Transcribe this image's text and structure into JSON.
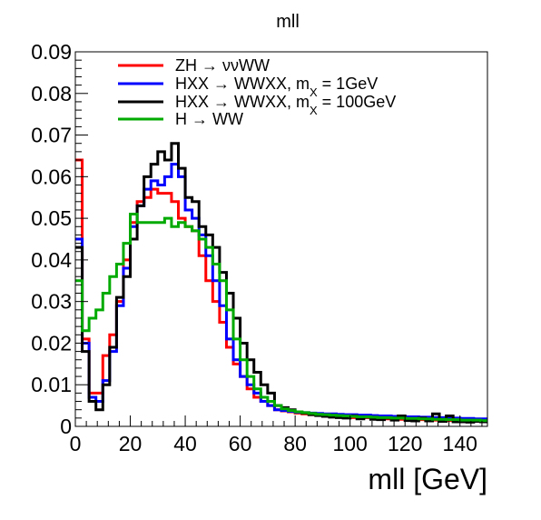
{
  "chart_data": {
    "type": "line",
    "drawstyle": "steps",
    "title": "mll",
    "xlabel": "mll [GeV]",
    "ylabel": "",
    "xlim": [
      0,
      150
    ],
    "ylim": [
      0,
      0.09
    ],
    "xticks": [
      "0",
      "20",
      "40",
      "60",
      "80",
      "100",
      "120",
      "140"
    ],
    "yticks": [
      "0",
      "0.01",
      "0.02",
      "0.03",
      "0.04",
      "0.05",
      "0.06",
      "0.07",
      "0.08",
      "0.09"
    ],
    "bin_width": 2.5,
    "grid": false,
    "legend_position": "top",
    "series": [
      {
        "legend_parts": [
          "ZH → ",
          "νν",
          "WW"
        ],
        "color": "#ff0000",
        "values": [
          0.064,
          0.021,
          0.008,
          0.008,
          0.017,
          0.022,
          0.03,
          0.04,
          0.049,
          0.054,
          0.055,
          0.057,
          0.056,
          0.056,
          0.054,
          0.05,
          0.048,
          0.047,
          0.041,
          0.035,
          0.03,
          0.025,
          0.019,
          0.015,
          0.012,
          0.009,
          0.007,
          0.006,
          0.005,
          0.004,
          0.0037,
          0.0035,
          0.0032,
          0.003,
          0.0028,
          0.0027,
          0.0025,
          0.0024,
          0.0023,
          0.0022,
          0.0021,
          0.002,
          0.0021,
          0.0019,
          0.0019,
          0.0018,
          0.0018,
          0.0017,
          0.0017,
          0.0016,
          0.0016,
          0.0015,
          0.0015,
          0.0014,
          0.0014,
          0.0013,
          0.0013,
          0.0013,
          0.0012,
          0.0012
        ]
      },
      {
        "legend_parts": [
          "HXX → WWXX, m",
          "X",
          " = 1GeV"
        ],
        "color": "#0000ff",
        "values": [
          0.045,
          0.02,
          0.007,
          0.006,
          0.011,
          0.018,
          0.029,
          0.038,
          0.048,
          0.053,
          0.057,
          0.059,
          0.058,
          0.06,
          0.063,
          0.06,
          0.052,
          0.05,
          0.046,
          0.041,
          0.035,
          0.029,
          0.021,
          0.016,
          0.012,
          0.01,
          0.008,
          0.006,
          0.005,
          0.004,
          0.0038,
          0.0036,
          0.0034,
          0.0033,
          0.0032,
          0.0031,
          0.003,
          0.003,
          0.0029,
          0.0028,
          0.0028,
          0.0027,
          0.0027,
          0.0026,
          0.0025,
          0.0025,
          0.0024,
          0.0024,
          0.0023,
          0.0023,
          0.0022,
          0.0022,
          0.0021,
          0.0021,
          0.002,
          0.002,
          0.0019,
          0.0019,
          0.0018,
          0.0018
        ]
      },
      {
        "legend_parts": [
          "HXX → WWXX, m",
          "X",
          " = 100GeV"
        ],
        "color": "#000000",
        "values": [
          0.043,
          0.018,
          0.006,
          0.004,
          0.01,
          0.019,
          0.031,
          0.036,
          0.045,
          0.053,
          0.06,
          0.063,
          0.066,
          0.064,
          0.068,
          0.062,
          0.055,
          0.054,
          0.048,
          0.046,
          0.043,
          0.037,
          0.032,
          0.026,
          0.02,
          0.016,
          0.013,
          0.01,
          0.008,
          0.005,
          0.0045,
          0.004,
          0.0035,
          0.0032,
          0.0028,
          0.0026,
          0.0024,
          0.0022,
          0.0021,
          0.002,
          0.0025,
          0.0018,
          0.0022,
          0.0017,
          0.0016,
          0.002,
          0.0015,
          0.0025,
          0.0014,
          0.0013,
          0.002,
          0.0013,
          0.003,
          0.0012,
          0.0025,
          0.0011,
          0.0011,
          0.001,
          0.0012,
          0.0011
        ]
      },
      {
        "legend_parts": [
          "H → WW"
        ],
        "color": "#00aa00",
        "values": [
          0.035,
          0.023,
          0.026,
          0.028,
          0.032,
          0.036,
          0.039,
          0.044,
          0.051,
          0.049,
          0.049,
          0.049,
          0.049,
          0.05,
          0.048,
          0.049,
          0.048,
          0.047,
          0.045,
          0.043,
          0.039,
          0.035,
          0.028,
          0.021,
          0.016,
          0.012,
          0.009,
          0.007,
          0.006,
          0.005,
          0.0042,
          0.0038,
          0.0035,
          0.0033,
          0.0031,
          0.0029,
          0.0028,
          0.0027,
          0.0026,
          0.0025,
          0.0024,
          0.0023,
          0.0023,
          0.0022,
          0.0021,
          0.0021,
          0.002,
          0.002,
          0.0019,
          0.0019,
          0.0018,
          0.0018,
          0.0017,
          0.0017,
          0.0016,
          0.0016,
          0.0015,
          0.0015,
          0.0015,
          0.0014
        ]
      }
    ]
  }
}
